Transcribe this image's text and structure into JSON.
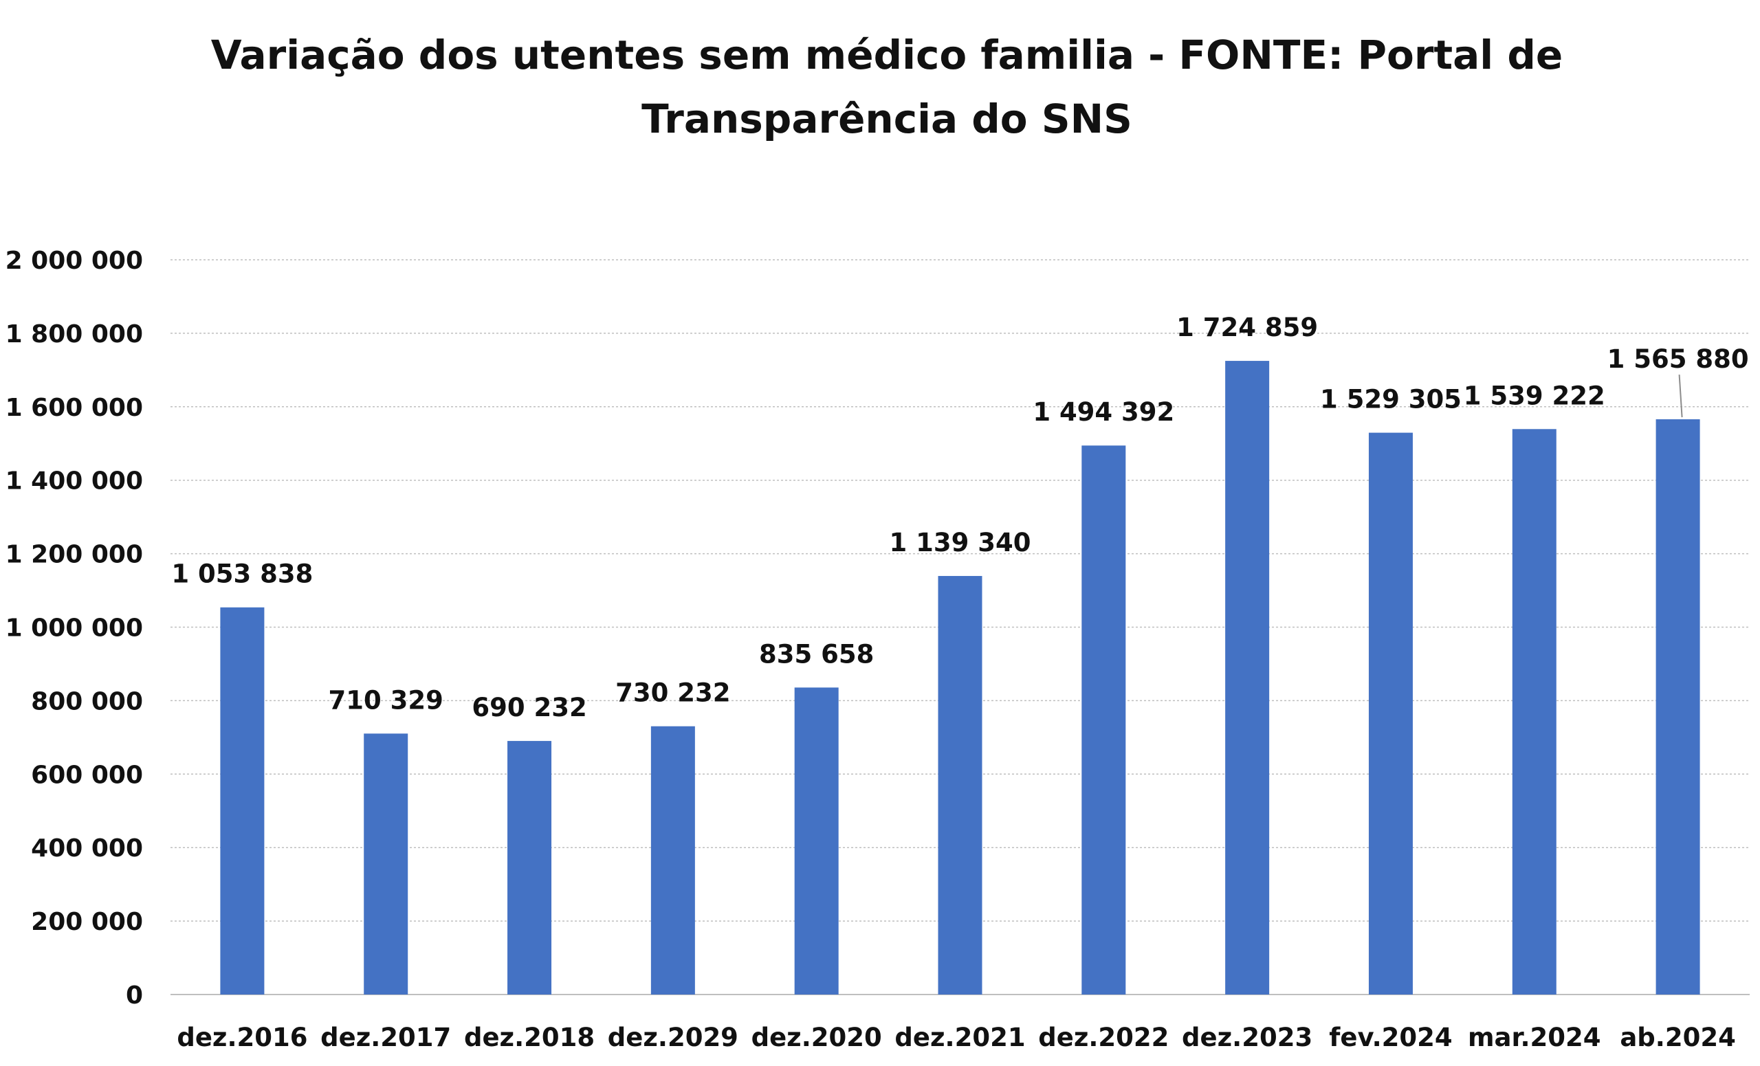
{
  "chart_data": {
    "type": "bar",
    "title_lines": [
      "Variação dos utentes sem médico familia - FONTE: Portal de",
      "Transparência do SNS"
    ],
    "categories": [
      "dez.2016",
      "dez.2017",
      "dez.2018",
      "dez.2029",
      "dez.2020",
      "dez.2021",
      "dez.2022",
      "dez.2023",
      "fev.2024",
      "mar.2024",
      "ab.2024"
    ],
    "values": [
      1053838,
      710329,
      690232,
      730232,
      835658,
      1139340,
      1494392,
      1724859,
      1529305,
      1539222,
      1565880
    ],
    "data_labels": [
      "1 053 838",
      "710 329",
      "690 232",
      "730 232",
      "835 658",
      "1 139 340",
      "1 494 392",
      "1 724 859",
      "1 529 305",
      "1 539 222",
      "1 565 880"
    ],
    "y_ticks": [
      0,
      200000,
      400000,
      600000,
      800000,
      1000000,
      1200000,
      1400000,
      1600000,
      1800000,
      2000000
    ],
    "y_tick_labels": [
      "0",
      "200 000",
      "400 000",
      "600 000",
      "800 000",
      "1 000 000",
      "1 200 000",
      "1 400 000",
      "1 600 000",
      "1 800 000",
      "2 000 000"
    ],
    "ylim": [
      0,
      2000000
    ],
    "grid": true,
    "legend": "none",
    "bar_color": "#4472c4"
  }
}
